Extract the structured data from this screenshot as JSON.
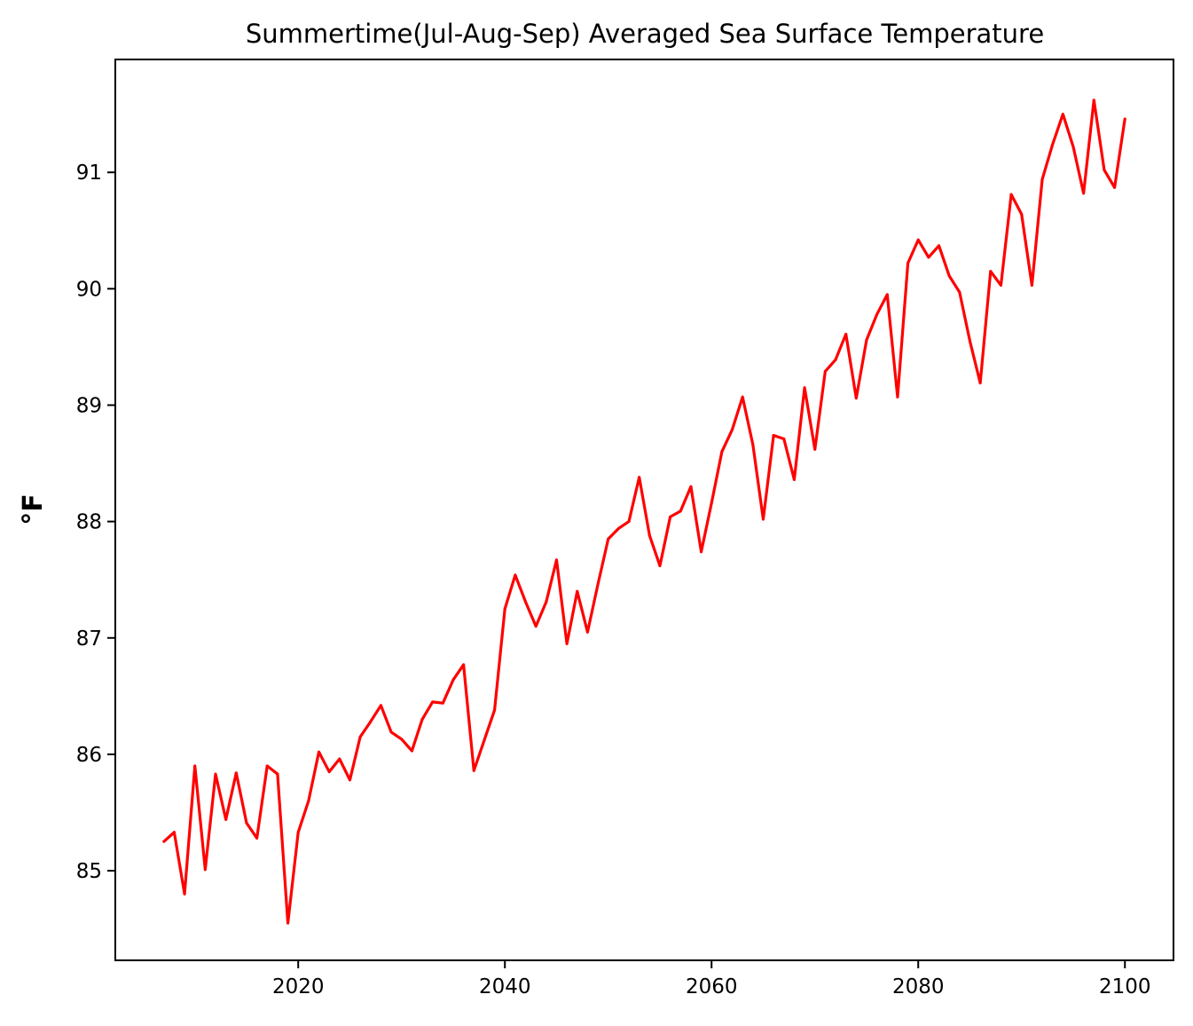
{
  "chart_data": {
    "type": "line",
    "title": "Summertime(Jul-Aug-Sep) Averaged Sea Surface Temperature",
    "xlabel": "",
    "ylabel": "°F",
    "xlim": [
      2002.3,
      2104.7
    ],
    "ylim": [
      84.23,
      91.97
    ],
    "x_ticks": [
      2020,
      2040,
      2060,
      2080,
      2100
    ],
    "y_ticks": [
      85,
      86,
      87,
      88,
      89,
      90,
      91
    ],
    "grid": false,
    "series": [
      {
        "color": "#ff0000",
        "x": [
          2007,
          2008,
          2009,
          2010,
          2011,
          2012,
          2013,
          2014,
          2015,
          2016,
          2017,
          2018,
          2019,
          2020,
          2021,
          2022,
          2023,
          2024,
          2025,
          2026,
          2027,
          2028,
          2029,
          2030,
          2031,
          2032,
          2033,
          2034,
          2035,
          2036,
          2037,
          2038,
          2039,
          2040,
          2041,
          2042,
          2043,
          2044,
          2045,
          2046,
          2047,
          2048,
          2049,
          2050,
          2051,
          2052,
          2053,
          2054,
          2055,
          2056,
          2057,
          2058,
          2059,
          2060,
          2061,
          2062,
          2063,
          2064,
          2065,
          2066,
          2067,
          2068,
          2069,
          2070,
          2071,
          2072,
          2073,
          2074,
          2075,
          2076,
          2077,
          2078,
          2079,
          2080,
          2081,
          2082,
          2083,
          2084,
          2085,
          2086,
          2087,
          2088,
          2089,
          2090,
          2091,
          2092,
          2093,
          2094,
          2095,
          2096,
          2097,
          2098,
          2099,
          2100
        ],
        "y": [
          85.25,
          85.33,
          84.8,
          85.9,
          85.01,
          85.83,
          85.44,
          85.84,
          85.41,
          85.28,
          85.9,
          85.83,
          84.55,
          85.33,
          85.6,
          86.02,
          85.85,
          85.96,
          85.78,
          86.15,
          86.28,
          86.42,
          86.19,
          86.13,
          86.03,
          86.3,
          86.45,
          86.44,
          86.64,
          86.77,
          85.86,
          86.12,
          86.38,
          87.25,
          87.54,
          87.31,
          87.1,
          87.31,
          87.67,
          86.95,
          87.4,
          87.05,
          87.46,
          87.85,
          87.94,
          88.0,
          88.38,
          87.88,
          87.62,
          88.04,
          88.09,
          88.3,
          87.74,
          88.16,
          88.6,
          88.79,
          89.07,
          88.66,
          88.02,
          88.74,
          88.71,
          88.36,
          89.15,
          88.62,
          89.29,
          89.39,
          89.61,
          89.06,
          89.56,
          89.78,
          89.95,
          89.07,
          90.22,
          90.42,
          90.27,
          90.37,
          90.11,
          89.97,
          89.55,
          89.19,
          90.15,
          90.03,
          90.81,
          90.64,
          90.03,
          90.94,
          91.24,
          91.5,
          91.22,
          90.82,
          91.62,
          91.02,
          90.87,
          91.46
        ]
      }
    ]
  }
}
